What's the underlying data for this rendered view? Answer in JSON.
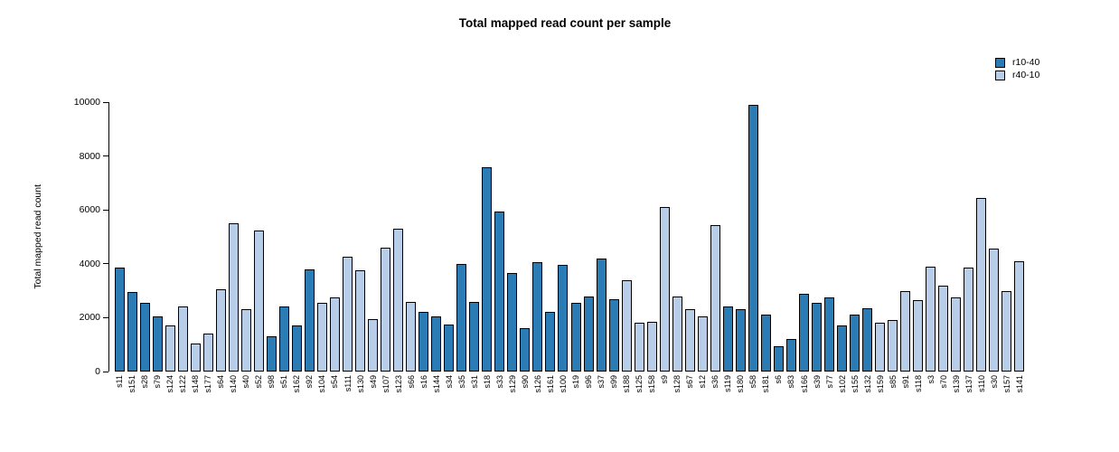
{
  "chart_data": {
    "type": "bar",
    "title": "Total mapped read count per sample",
    "xlabel": "",
    "ylabel": "Total mapped read count",
    "ylim": [
      0,
      10000
    ],
    "yticks": [
      0,
      2000,
      4000,
      6000,
      8000,
      10000
    ],
    "grid": false,
    "legend_position": "top-right",
    "series": [
      {
        "name": "r10-40",
        "color": "#2b7cb5"
      },
      {
        "name": "r40-10",
        "color": "#b8cee8"
      }
    ],
    "bar_border_color": "#000000",
    "bars": [
      {
        "label": "s11",
        "value": 3850,
        "series": "r10-40"
      },
      {
        "label": "s151",
        "value": 2950,
        "series": "r10-40"
      },
      {
        "label": "s28",
        "value": 2550,
        "series": "r10-40"
      },
      {
        "label": "s79",
        "value": 2050,
        "series": "r10-40"
      },
      {
        "label": "s124",
        "value": 1700,
        "series": "r40-10"
      },
      {
        "label": "s122",
        "value": 2400,
        "series": "r40-10"
      },
      {
        "label": "s148",
        "value": 1050,
        "series": "r40-10"
      },
      {
        "label": "s177",
        "value": 1400,
        "series": "r40-10"
      },
      {
        "label": "s64",
        "value": 3050,
        "series": "r40-10"
      },
      {
        "label": "s140",
        "value": 5500,
        "series": "r40-10"
      },
      {
        "label": "s40",
        "value": 2300,
        "series": "r40-10"
      },
      {
        "label": "s52",
        "value": 5250,
        "series": "r40-10"
      },
      {
        "label": "s98",
        "value": 1300,
        "series": "r10-40"
      },
      {
        "label": "s51",
        "value": 2400,
        "series": "r10-40"
      },
      {
        "label": "s162",
        "value": 1700,
        "series": "r10-40"
      },
      {
        "label": "s92",
        "value": 3800,
        "series": "r10-40"
      },
      {
        "label": "s104",
        "value": 2550,
        "series": "r40-10"
      },
      {
        "label": "s54",
        "value": 2750,
        "series": "r40-10"
      },
      {
        "label": "s111",
        "value": 4250,
        "series": "r40-10"
      },
      {
        "label": "s130",
        "value": 3750,
        "series": "r40-10"
      },
      {
        "label": "s49",
        "value": 1950,
        "series": "r40-10"
      },
      {
        "label": "s107",
        "value": 4600,
        "series": "r40-10"
      },
      {
        "label": "s123",
        "value": 5300,
        "series": "r40-10"
      },
      {
        "label": "s66",
        "value": 2600,
        "series": "r40-10"
      },
      {
        "label": "s16",
        "value": 2200,
        "series": "r10-40"
      },
      {
        "label": "s144",
        "value": 2050,
        "series": "r10-40"
      },
      {
        "label": "s34",
        "value": 1750,
        "series": "r10-40"
      },
      {
        "label": "s35",
        "value": 4000,
        "series": "r10-40"
      },
      {
        "label": "s31",
        "value": 2600,
        "series": "r10-40"
      },
      {
        "label": "s18",
        "value": 7600,
        "series": "r10-40"
      },
      {
        "label": "s33",
        "value": 5950,
        "series": "r10-40"
      },
      {
        "label": "s129",
        "value": 3650,
        "series": "r10-40"
      },
      {
        "label": "s90",
        "value": 1600,
        "series": "r10-40"
      },
      {
        "label": "s126",
        "value": 4050,
        "series": "r10-40"
      },
      {
        "label": "s161",
        "value": 2200,
        "series": "r10-40"
      },
      {
        "label": "s100",
        "value": 3950,
        "series": "r10-40"
      },
      {
        "label": "s19",
        "value": 2550,
        "series": "r10-40"
      },
      {
        "label": "s96",
        "value": 2800,
        "series": "r10-40"
      },
      {
        "label": "s37",
        "value": 4200,
        "series": "r10-40"
      },
      {
        "label": "s99",
        "value": 2700,
        "series": "r10-40"
      },
      {
        "label": "s188",
        "value": 3400,
        "series": "r40-10"
      },
      {
        "label": "s125",
        "value": 1800,
        "series": "r40-10"
      },
      {
        "label": "s158",
        "value": 1850,
        "series": "r40-10"
      },
      {
        "label": "s9",
        "value": 6100,
        "series": "r40-10"
      },
      {
        "label": "s128",
        "value": 2800,
        "series": "r40-10"
      },
      {
        "label": "s67",
        "value": 2300,
        "series": "r40-10"
      },
      {
        "label": "s12",
        "value": 2050,
        "series": "r40-10"
      },
      {
        "label": "s36",
        "value": 5450,
        "series": "r40-10"
      },
      {
        "label": "s119",
        "value": 2400,
        "series": "r10-40"
      },
      {
        "label": "s180",
        "value": 2300,
        "series": "r10-40"
      },
      {
        "label": "s58",
        "value": 9900,
        "series": "r10-40"
      },
      {
        "label": "s181",
        "value": 2100,
        "series": "r10-40"
      },
      {
        "label": "s6",
        "value": 950,
        "series": "r10-40"
      },
      {
        "label": "s83",
        "value": 1200,
        "series": "r10-40"
      },
      {
        "label": "s166",
        "value": 2900,
        "series": "r10-40"
      },
      {
        "label": "s39",
        "value": 2550,
        "series": "r10-40"
      },
      {
        "label": "s77",
        "value": 2750,
        "series": "r10-40"
      },
      {
        "label": "s102",
        "value": 1700,
        "series": "r10-40"
      },
      {
        "label": "s155",
        "value": 2100,
        "series": "r10-40"
      },
      {
        "label": "s132",
        "value": 2350,
        "series": "r10-40"
      },
      {
        "label": "s159",
        "value": 1800,
        "series": "r40-10"
      },
      {
        "label": "s85",
        "value": 1900,
        "series": "r40-10"
      },
      {
        "label": "s91",
        "value": 3000,
        "series": "r40-10"
      },
      {
        "label": "s118",
        "value": 2650,
        "series": "r40-10"
      },
      {
        "label": "s3",
        "value": 3900,
        "series": "r40-10"
      },
      {
        "label": "s70",
        "value": 3200,
        "series": "r40-10"
      },
      {
        "label": "s139",
        "value": 2750,
        "series": "r40-10"
      },
      {
        "label": "s137",
        "value": 3850,
        "series": "r40-10"
      },
      {
        "label": "s110",
        "value": 6450,
        "series": "r40-10"
      },
      {
        "label": "s30",
        "value": 4550,
        "series": "r40-10"
      },
      {
        "label": "s157",
        "value": 3000,
        "series": "r40-10"
      },
      {
        "label": "s141",
        "value": 4100,
        "series": "r40-10"
      }
    ]
  }
}
